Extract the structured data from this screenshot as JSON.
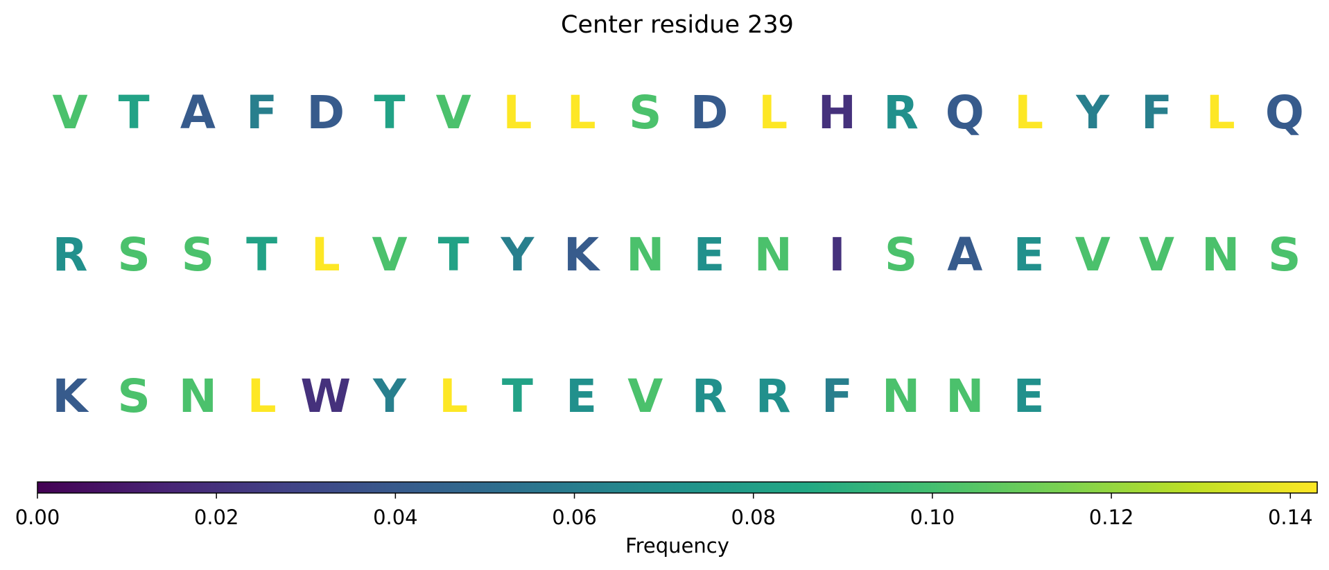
{
  "chart_data": {
    "type": "heatmap",
    "title": "Center residue 239",
    "colormap": "viridis",
    "colorbar": {
      "label": "Frequency",
      "range": [
        0.0,
        0.143
      ],
      "ticks": [
        "0.00",
        "0.02",
        "0.04",
        "0.06",
        "0.08",
        "0.10",
        "0.12",
        "0.14"
      ],
      "tick_values": [
        0.0,
        0.02,
        0.04,
        0.06,
        0.08,
        0.1,
        0.12,
        0.14
      ],
      "orientation": "horizontal",
      "placement": "bottom"
    },
    "letters_per_row": 20,
    "residues": [
      {
        "letter": "V",
        "frequency": 0.102
      },
      {
        "letter": "T",
        "frequency": 0.082
      },
      {
        "letter": "A",
        "frequency": 0.041
      },
      {
        "letter": "F",
        "frequency": 0.061
      },
      {
        "letter": "D",
        "frequency": 0.041
      },
      {
        "letter": "T",
        "frequency": 0.082
      },
      {
        "letter": "V",
        "frequency": 0.102
      },
      {
        "letter": "L",
        "frequency": 0.143
      },
      {
        "letter": "L",
        "frequency": 0.143
      },
      {
        "letter": "S",
        "frequency": 0.102
      },
      {
        "letter": "D",
        "frequency": 0.041
      },
      {
        "letter": "L",
        "frequency": 0.143
      },
      {
        "letter": "H",
        "frequency": 0.02
      },
      {
        "letter": "R",
        "frequency": 0.071
      },
      {
        "letter": "Q",
        "frequency": 0.041
      },
      {
        "letter": "L",
        "frequency": 0.143
      },
      {
        "letter": "Y",
        "frequency": 0.061
      },
      {
        "letter": "F",
        "frequency": 0.061
      },
      {
        "letter": "L",
        "frequency": 0.143
      },
      {
        "letter": "Q",
        "frequency": 0.041
      },
      {
        "letter": "R",
        "frequency": 0.071
      },
      {
        "letter": "S",
        "frequency": 0.102
      },
      {
        "letter": "S",
        "frequency": 0.102
      },
      {
        "letter": "T",
        "frequency": 0.082
      },
      {
        "letter": "L",
        "frequency": 0.143
      },
      {
        "letter": "V",
        "frequency": 0.102
      },
      {
        "letter": "T",
        "frequency": 0.082
      },
      {
        "letter": "Y",
        "frequency": 0.061
      },
      {
        "letter": "K",
        "frequency": 0.041
      },
      {
        "letter": "N",
        "frequency": 0.102
      },
      {
        "letter": "E",
        "frequency": 0.071
      },
      {
        "letter": "N",
        "frequency": 0.102
      },
      {
        "letter": "I",
        "frequency": 0.02
      },
      {
        "letter": "S",
        "frequency": 0.102
      },
      {
        "letter": "A",
        "frequency": 0.041
      },
      {
        "letter": "E",
        "frequency": 0.071
      },
      {
        "letter": "V",
        "frequency": 0.102
      },
      {
        "letter": "V",
        "frequency": 0.102
      },
      {
        "letter": "N",
        "frequency": 0.102
      },
      {
        "letter": "S",
        "frequency": 0.102
      },
      {
        "letter": "K",
        "frequency": 0.041
      },
      {
        "letter": "S",
        "frequency": 0.102
      },
      {
        "letter": "N",
        "frequency": 0.102
      },
      {
        "letter": "L",
        "frequency": 0.143
      },
      {
        "letter": "W",
        "frequency": 0.02
      },
      {
        "letter": "Y",
        "frequency": 0.061
      },
      {
        "letter": "L",
        "frequency": 0.143
      },
      {
        "letter": "T",
        "frequency": 0.082
      },
      {
        "letter": "E",
        "frequency": 0.071
      },
      {
        "letter": "V",
        "frequency": 0.102
      },
      {
        "letter": "R",
        "frequency": 0.071
      },
      {
        "letter": "R",
        "frequency": 0.071
      },
      {
        "letter": "F",
        "frequency": 0.061
      },
      {
        "letter": "N",
        "frequency": 0.102
      },
      {
        "letter": "N",
        "frequency": 0.102
      },
      {
        "letter": "E",
        "frequency": 0.071
      }
    ]
  }
}
